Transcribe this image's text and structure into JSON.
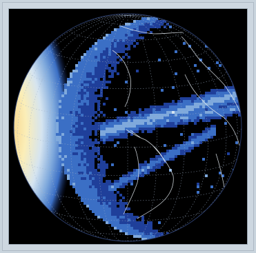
{
  "figure": {
    "kind": "orthographic-globe-density-map",
    "projection": "orthographic",
    "gridlines": true,
    "coastlines": true,
    "colormap": {
      "name": "blue-white-yellow-red",
      "stops": [
        "#000000",
        "#0d1b5e",
        "#1f3f9a",
        "#3b6fc5",
        "#7fa9dc",
        "#d5e4f0",
        "#fbeeb8",
        "#f7cf80",
        "#f0a050",
        "#d8582a",
        "#a8221a"
      ]
    },
    "frame_color": "#cdd7e0",
    "background_color": "#000000"
  }
}
